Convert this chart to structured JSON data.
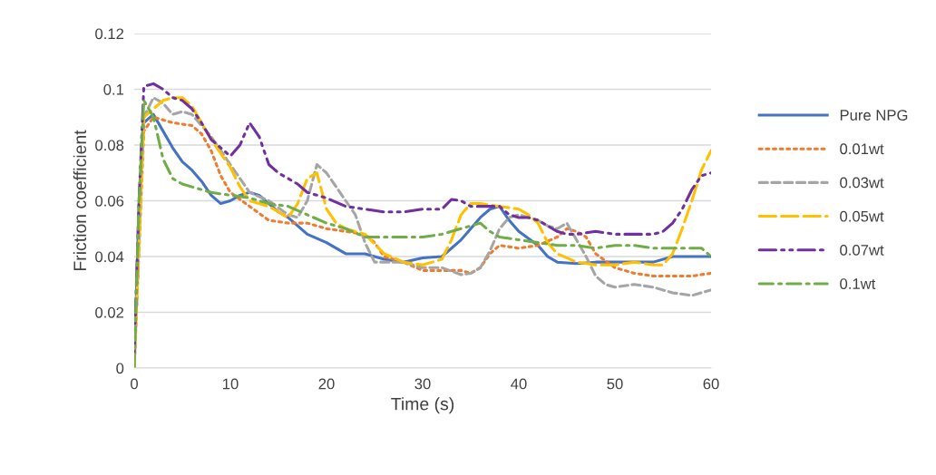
{
  "chart_data": {
    "type": "line",
    "xlabel": "Time (s)",
    "ylabel": "Friction coefficient",
    "xlim": [
      0,
      60
    ],
    "xticks": [
      0,
      10,
      20,
      30,
      40,
      50,
      60
    ],
    "ylim": [
      0,
      0.12
    ],
    "yticks": [
      0,
      0.02,
      0.04,
      0.06,
      0.08,
      0.1,
      0.12
    ],
    "grid": "y",
    "legend": "right",
    "marker": "none",
    "series": [
      {
        "name": "Pure NPG",
        "color": "#4472c4",
        "line_style": "solid",
        "x": [
          0,
          0.5,
          1,
          2,
          3,
          4,
          5,
          6,
          7,
          8,
          9,
          10,
          11,
          12,
          13,
          14,
          15,
          16,
          17,
          18,
          20,
          22,
          23,
          24,
          26,
          28,
          30,
          32,
          34,
          36,
          37,
          38,
          39,
          40,
          42,
          43,
          44,
          46,
          48,
          50,
          52,
          54,
          56,
          58,
          60
        ],
        "values": [
          0,
          0.06,
          0.088,
          0.091,
          0.085,
          0.079,
          0.074,
          0.071,
          0.067,
          0.062,
          0.059,
          0.06,
          0.062,
          0.063,
          0.062,
          0.059,
          0.056,
          0.054,
          0.051,
          0.048,
          0.045,
          0.041,
          0.041,
          0.041,
          0.039,
          0.038,
          0.0395,
          0.04,
          0.046,
          0.054,
          0.057,
          0.058,
          0.053,
          0.049,
          0.044,
          0.04,
          0.038,
          0.0375,
          0.038,
          0.038,
          0.038,
          0.038,
          0.04,
          0.04,
          0.04
        ]
      },
      {
        "name": "0.01wt",
        "color": "#ed7d31",
        "line_style": "dotted",
        "x": [
          0,
          1,
          2,
          3,
          4,
          6,
          7,
          8,
          9,
          10,
          12,
          14,
          16,
          18,
          20,
          22,
          24,
          25,
          26,
          28,
          30,
          32,
          34,
          35,
          36,
          37,
          38,
          40,
          42,
          44,
          45,
          46,
          47,
          48,
          50,
          52,
          54,
          56,
          58,
          60
        ],
        "values": [
          0,
          0.085,
          0.09,
          0.089,
          0.088,
          0.087,
          0.084,
          0.078,
          0.069,
          0.063,
          0.058,
          0.053,
          0.052,
          0.052,
          0.05,
          0.049,
          0.048,
          0.045,
          0.04,
          0.038,
          0.035,
          0.035,
          0.035,
          0.034,
          0.036,
          0.041,
          0.044,
          0.043,
          0.044,
          0.047,
          0.05,
          0.049,
          0.047,
          0.041,
          0.036,
          0.034,
          0.033,
          0.033,
          0.033,
          0.034
        ]
      },
      {
        "name": "0.03wt",
        "color": "#a5a5a5",
        "line_style": "dashed",
        "x": [
          0,
          1,
          2,
          3,
          4,
          5,
          6,
          8,
          10,
          12,
          14,
          16,
          17,
          18,
          19,
          20,
          22,
          23,
          24,
          25,
          26,
          28,
          30,
          32,
          34,
          35,
          36,
          37,
          38,
          39,
          40,
          42,
          43,
          44,
          45,
          46,
          47,
          48,
          49,
          50,
          52,
          54,
          56,
          58,
          60
        ],
        "values": [
          0,
          0.09,
          0.097,
          0.095,
          0.091,
          0.092,
          0.091,
          0.083,
          0.073,
          0.063,
          0.06,
          0.055,
          0.054,
          0.06,
          0.073,
          0.07,
          0.06,
          0.055,
          0.045,
          0.038,
          0.038,
          0.038,
          0.036,
          0.036,
          0.0335,
          0.034,
          0.036,
          0.042,
          0.05,
          0.054,
          0.055,
          0.053,
          0.051,
          0.05,
          0.052,
          0.046,
          0.04,
          0.033,
          0.03,
          0.029,
          0.03,
          0.029,
          0.027,
          0.026,
          0.028
        ]
      },
      {
        "name": "0.05wt",
        "color": "#ffc000",
        "line_style": "longdash",
        "x": [
          0,
          1,
          2,
          3,
          4,
          5,
          6,
          7,
          8,
          10,
          11,
          12,
          14,
          16,
          17,
          18,
          19,
          20,
          21,
          22,
          24,
          26,
          28,
          30,
          32,
          33,
          34,
          35,
          36,
          38,
          40,
          41,
          42,
          43,
          44,
          46,
          48,
          50,
          52,
          54,
          55,
          56,
          57,
          58,
          59,
          60
        ],
        "values": [
          0,
          0.09,
          0.093,
          0.096,
          0.097,
          0.097,
          0.094,
          0.088,
          0.082,
          0.072,
          0.065,
          0.06,
          0.058,
          0.054,
          0.059,
          0.068,
          0.07,
          0.057,
          0.052,
          0.05,
          0.048,
          0.041,
          0.038,
          0.037,
          0.039,
          0.046,
          0.055,
          0.059,
          0.059,
          0.058,
          0.057,
          0.055,
          0.052,
          0.045,
          0.041,
          0.038,
          0.037,
          0.037,
          0.038,
          0.037,
          0.037,
          0.041,
          0.05,
          0.06,
          0.071,
          0.078
        ]
      },
      {
        "name": "0.07wt",
        "color": "#7030a0",
        "line_style": "dashdotdot",
        "x": [
          0,
          0.5,
          1,
          2,
          3,
          4,
          5,
          6,
          7,
          8,
          9,
          10,
          11,
          12,
          13,
          14,
          15,
          16,
          17,
          18,
          19,
          20,
          22,
          24,
          26,
          28,
          30,
          32,
          33,
          34,
          35,
          36,
          38,
          39,
          40,
          41,
          42,
          44,
          45,
          46,
          48,
          50,
          52,
          54,
          55,
          56,
          57,
          58,
          59,
          60
        ],
        "values": [
          0.005,
          0.06,
          0.101,
          0.102,
          0.1,
          0.097,
          0.096,
          0.093,
          0.088,
          0.082,
          0.079,
          0.076,
          0.08,
          0.088,
          0.083,
          0.073,
          0.07,
          0.068,
          0.066,
          0.063,
          0.062,
          0.061,
          0.058,
          0.057,
          0.056,
          0.056,
          0.057,
          0.057,
          0.0605,
          0.06,
          0.058,
          0.058,
          0.058,
          0.055,
          0.054,
          0.054,
          0.053,
          0.049,
          0.048,
          0.048,
          0.049,
          0.048,
          0.048,
          0.048,
          0.049,
          0.052,
          0.057,
          0.064,
          0.069,
          0.07
        ]
      },
      {
        "name": "0.1wt",
        "color": "#70ad47",
        "line_style": "dashdot",
        "x": [
          0,
          0.5,
          1,
          2,
          3,
          4,
          5,
          6,
          8,
          10,
          12,
          14,
          16,
          18,
          20,
          22,
          24,
          26,
          28,
          30,
          32,
          34,
          36,
          37,
          38,
          40,
          42,
          44,
          46,
          48,
          50,
          52,
          54,
          56,
          58,
          59,
          60
        ],
        "values": [
          0,
          0.06,
          0.096,
          0.09,
          0.075,
          0.068,
          0.066,
          0.065,
          0.063,
          0.062,
          0.061,
          0.059,
          0.058,
          0.055,
          0.052,
          0.05,
          0.047,
          0.047,
          0.047,
          0.047,
          0.048,
          0.05,
          0.052,
          0.049,
          0.047,
          0.046,
          0.045,
          0.044,
          0.044,
          0.043,
          0.044,
          0.044,
          0.043,
          0.043,
          0.043,
          0.043,
          0.04
        ]
      }
    ]
  }
}
